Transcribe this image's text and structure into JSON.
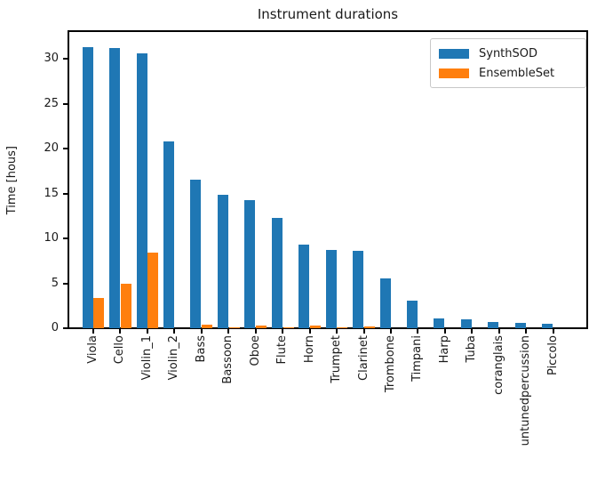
{
  "chart_data": {
    "type": "bar",
    "bar_group": "grouped",
    "title": "Instrument durations",
    "xlabel": "",
    "ylabel": "Time [hous]",
    "categories": [
      "Viola",
      "Cello",
      "Violin_1",
      "Violin_2",
      "Bass",
      "Bassoon",
      "Oboe",
      "Flute",
      "Horn",
      "Trumpet",
      "Clarinet",
      "Trombone",
      "Timpani",
      "Harp",
      "Tuba",
      "coranglais",
      "untunedpercussion",
      "Piccolo"
    ],
    "series": [
      {
        "name": "SynthSOD",
        "color": "#1f77b4",
        "values": [
          31.3,
          31.2,
          30.6,
          20.8,
          16.5,
          14.9,
          14.3,
          12.3,
          9.3,
          8.7,
          8.6,
          5.5,
          3.1,
          1.1,
          1.0,
          0.65,
          0.6,
          0.5
        ]
      },
      {
        "name": "EnsembleSet",
        "color": "#ff7f0e",
        "values": [
          3.4,
          5.0,
          8.4,
          0,
          0.4,
          0.1,
          0.3,
          0.1,
          0.3,
          0.1,
          0.2,
          0,
          0,
          0,
          0,
          0,
          0,
          0
        ]
      }
    ],
    "yticks": [
      0,
      5,
      10,
      15,
      20,
      25,
      30
    ],
    "ylim": [
      0,
      33.2
    ],
    "grid": false,
    "legend_position": "upper right",
    "x_tick_rotation_deg": 90
  }
}
